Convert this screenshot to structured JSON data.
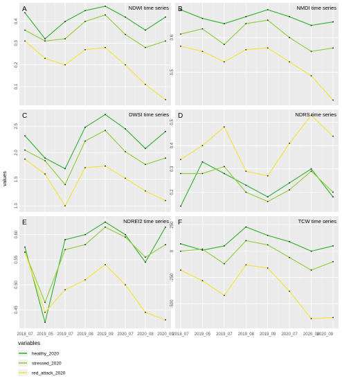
{
  "figure": {
    "ylabel": "values",
    "legend_title": "variables",
    "x_ticks": [
      "2018_07",
      "2019_05",
      "2019_07",
      "2019_08",
      "2019_09",
      "2020_07",
      "2020_08",
      "2020_09"
    ]
  },
  "series_meta": [
    {
      "name": "healthy_2020",
      "color": "#33b233"
    },
    {
      "name": "stressed_2020",
      "color": "#8fce3a"
    },
    {
      "name": "red_attack_2020",
      "color": "#f4e33a"
    }
  ],
  "chart_data": [
    {
      "panel": "A",
      "type": "line",
      "title": "NDWI time series",
      "categories": [
        "2018_07",
        "2019_05",
        "2019_07",
        "2019_08",
        "2019_09",
        "2020_07",
        "2020_08",
        "2020_09"
      ],
      "ylim": [
        0.03,
        0.47
      ],
      "yticks": [
        0.1,
        0.2,
        0.3,
        0.4
      ],
      "ytick_labels": [
        "0.1",
        "0.2",
        "0.3",
        "0.4"
      ],
      "series": [
        {
          "name": "healthy_2020",
          "values": [
            0.44,
            0.32,
            0.4,
            0.45,
            0.47,
            0.42,
            0.36,
            0.42
          ]
        },
        {
          "name": "stressed_2020",
          "values": [
            0.36,
            0.31,
            0.32,
            0.4,
            0.43,
            0.34,
            0.28,
            0.31
          ]
        },
        {
          "name": "red_attack_2020",
          "values": [
            0.31,
            0.23,
            0.2,
            0.27,
            0.28,
            0.2,
            0.11,
            0.04
          ]
        }
      ]
    },
    {
      "panel": "B",
      "type": "line",
      "title": "NMDI time series",
      "categories": [
        "2018_07",
        "2019_05",
        "2019_07",
        "2019_08",
        "2019_09",
        "2020_07",
        "2020_08",
        "2020_09"
      ],
      "ylim": [
        0.415,
        0.69
      ],
      "yticks": [
        0.5,
        0.6
      ],
      "ytick_labels": [
        "0.5",
        "0.6"
      ],
      "series": [
        {
          "name": "healthy_2020",
          "values": [
            0.68,
            0.655,
            0.64,
            0.66,
            0.68,
            0.66,
            0.635,
            0.645
          ]
        },
        {
          "name": "stressed_2020",
          "values": [
            0.61,
            0.625,
            0.58,
            0.64,
            0.65,
            0.6,
            0.56,
            0.57
          ]
        },
        {
          "name": "red_attack_2020",
          "values": [
            0.575,
            0.56,
            0.53,
            0.565,
            0.57,
            0.53,
            0.49,
            0.42
          ]
        }
      ]
    },
    {
      "panel": "C",
      "type": "line",
      "title": "DWSI time series",
      "categories": [
        "2018_07",
        "2019_05",
        "2019_07",
        "2019_08",
        "2019_09",
        "2020_07",
        "2020_08",
        "2020_09"
      ],
      "ylim": [
        0.95,
        2.75
      ],
      "yticks": [
        1.0,
        1.5,
        2.0,
        2.5
      ],
      "ytick_labels": [
        "1.0",
        "1.5",
        "2.0",
        "2.5"
      ],
      "series": [
        {
          "name": "healthy_2020",
          "values": [
            2.32,
            1.9,
            1.7,
            2.48,
            2.72,
            2.45,
            2.08,
            2.4
          ]
        },
        {
          "name": "stressed_2020",
          "values": [
            2.05,
            1.85,
            1.4,
            2.22,
            2.42,
            2.02,
            1.78,
            1.9
          ]
        },
        {
          "name": "red_attack_2020",
          "values": [
            1.88,
            1.6,
            1.0,
            1.72,
            1.75,
            1.52,
            1.28,
            1.1
          ]
        }
      ]
    },
    {
      "panel": "D",
      "type": "line",
      "title": "NDRS time series",
      "categories": [
        "2018_07",
        "2019_05",
        "2019_07",
        "2019_08",
        "2019_09",
        "2020_07",
        "2020_08",
        "2020_09"
      ],
      "ylim": [
        0.13,
        0.54
      ],
      "yticks": [
        0.2,
        0.3,
        0.4,
        0.5
      ],
      "ytick_labels": [
        "0.2",
        "0.3",
        "0.4",
        "0.5"
      ],
      "series": [
        {
          "name": "healthy_2020",
          "values": [
            0.14,
            0.33,
            0.28,
            0.23,
            0.18,
            0.24,
            0.3,
            0.18
          ]
        },
        {
          "name": "stressed_2020",
          "values": [
            0.28,
            0.28,
            0.31,
            0.2,
            0.16,
            0.21,
            0.29,
            0.2
          ]
        },
        {
          "name": "red_attack_2020",
          "values": [
            0.34,
            0.4,
            0.48,
            0.29,
            0.27,
            0.41,
            0.53,
            0.44
          ]
        }
      ]
    },
    {
      "panel": "E",
      "type": "line",
      "title": "NDREI2 time series",
      "categories": [
        "2018_07",
        "2019_05",
        "2019_07",
        "2019_08",
        "2019_09",
        "2020_07",
        "2020_08",
        "2020_09"
      ],
      "ylim": [
        0.42,
        0.63
      ],
      "yticks": [
        0.45,
        0.5,
        0.55,
        0.6
      ],
      "ytick_labels": [
        "0.45",
        "0.50",
        "0.55",
        "0.60"
      ],
      "series": [
        {
          "name": "healthy_2020",
          "values": [
            0.575,
            0.425,
            0.59,
            0.6,
            0.625,
            0.6,
            0.545,
            0.615
          ]
        },
        {
          "name": "stressed_2020",
          "values": [
            0.565,
            0.465,
            0.57,
            0.58,
            0.615,
            0.595,
            0.555,
            0.58
          ]
        },
        {
          "name": "red_attack_2020",
          "values": [
            0.565,
            0.445,
            0.49,
            0.51,
            0.54,
            0.5,
            0.445,
            0.43
          ]
        }
      ]
    },
    {
      "panel": "F",
      "type": "line",
      "title": "TCW time series",
      "categories": [
        "2018_07",
        "2019_05",
        "2019_07",
        "2019_08",
        "2019_09",
        "2020_07",
        "2020_08",
        "2020_09"
      ],
      "ylim": [
        -700,
        300
      ],
      "yticks": [
        -500,
        -250,
        0,
        250
      ],
      "ytick_labels": [
        "-500",
        "-250",
        "0",
        "250"
      ],
      "series": [
        {
          "name": "healthy_2020",
          "values": [
            70,
            10,
            50,
            230,
            150,
            90,
            0,
            50
          ]
        },
        {
          "name": "stressed_2020",
          "values": [
            0,
            20,
            -120,
            100,
            60,
            -60,
            -180,
            -100
          ]
        },
        {
          "name": "red_attack_2020",
          "values": [
            -180,
            -280,
            -420,
            -130,
            -160,
            -380,
            -640,
            -630
          ]
        }
      ]
    }
  ]
}
